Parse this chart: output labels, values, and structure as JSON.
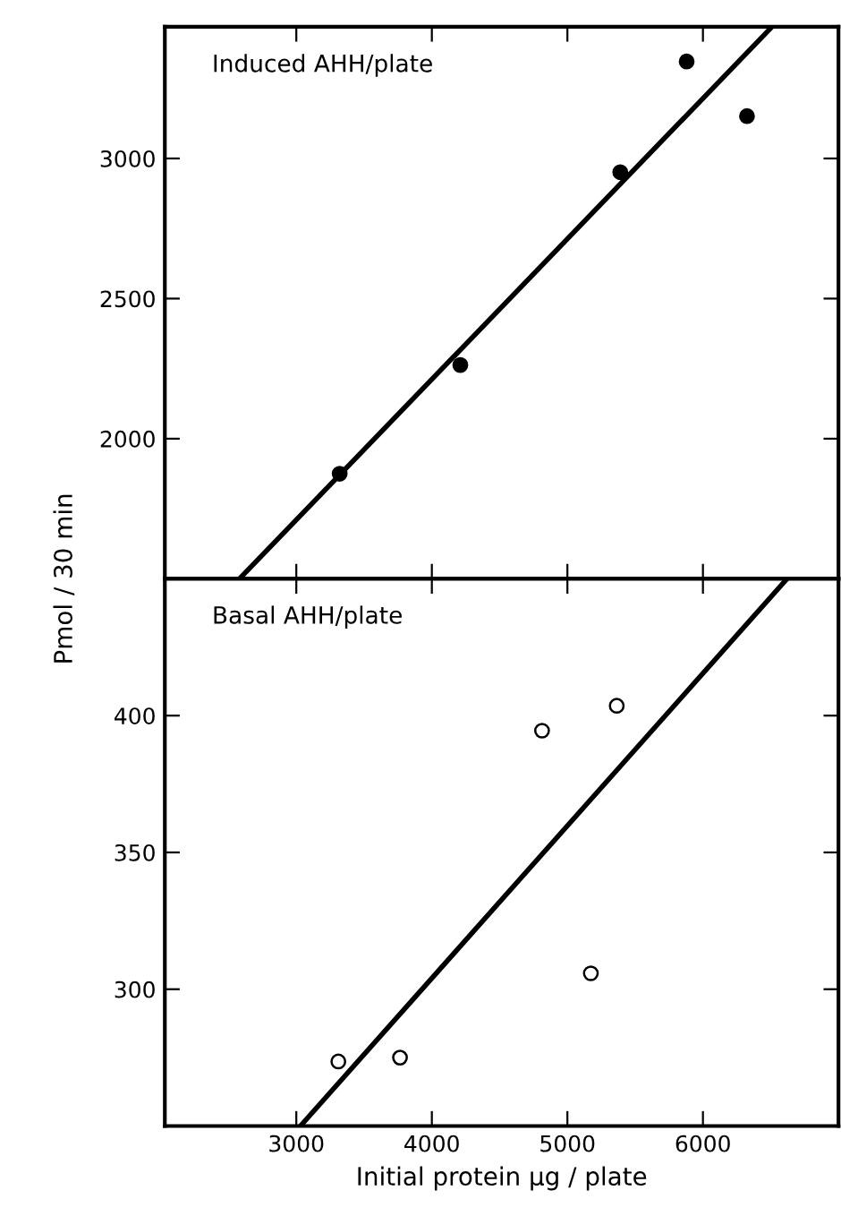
{
  "chart_data": [
    {
      "type": "scatter",
      "ylabel": "Pmol / 30 min",
      "annotations": [
        "Induced AHH/plate"
      ],
      "tick_labels": "y",
      "xlim": [
        2030,
        7000
      ],
      "xticks": [
        3000,
        4000,
        5000,
        6000
      ],
      "ylim": [
        1500,
        3470
      ],
      "yticks": [
        2000,
        2500,
        3000
      ],
      "grid": false,
      "legend": false,
      "series": [
        {
          "color": "#000000",
          "marker": "circle",
          "x": [
            3320,
            4210,
            5390,
            5880,
            6325
          ],
          "values": [
            1875,
            2263,
            2951,
            3346,
            3151
          ]
        },
        {
          "type": "line",
          "color": "#000000",
          "x": [
            2580,
            6510
          ],
          "values": [
            1500,
            3470
          ]
        }
      ]
    },
    {
      "type": "scatter",
      "xlabel": "Initial protein μg / plate",
      "annotations": [
        "Basal AHH/plate"
      ],
      "xlim": [
        2030,
        7000
      ],
      "xticks": [
        3000,
        4000,
        5000,
        6000
      ],
      "ylim": [
        250,
        450
      ],
      "yticks": [
        300,
        350,
        400
      ],
      "grid": false,
      "legend": false,
      "series": [
        {
          "color": "#ffffff",
          "marker": "circle",
          "x": [
            3310,
            3765,
            4813,
            5364,
            5173
          ],
          "values": [
            273.6,
            275,
            394.5,
            403.6,
            305.8
          ]
        },
        {
          "type": "line",
          "color": "#000000",
          "x": [
            3030,
            6620
          ],
          "values": [
            250,
            450
          ]
        }
      ]
    }
  ]
}
